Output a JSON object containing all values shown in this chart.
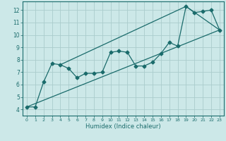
{
  "title": "",
  "xlabel": "Humidex (Indice chaleur)",
  "bg_color": "#cce8e8",
  "grid_color": "#aacccc",
  "line_color": "#1a6b6b",
  "xlim": [
    -0.5,
    23.5
  ],
  "ylim": [
    3.5,
    12.7
  ],
  "xticks": [
    0,
    1,
    2,
    3,
    4,
    5,
    6,
    7,
    8,
    9,
    10,
    11,
    12,
    13,
    14,
    15,
    16,
    17,
    18,
    19,
    20,
    21,
    22,
    23
  ],
  "yticks": [
    4,
    5,
    6,
    7,
    8,
    9,
    10,
    11,
    12
  ],
  "line1_x": [
    0,
    1,
    2,
    3,
    4,
    5,
    6,
    7,
    8,
    9,
    10,
    11,
    12,
    13,
    14,
    15,
    16,
    17,
    18,
    19,
    20,
    21,
    22,
    23
  ],
  "line1_y": [
    4.2,
    4.2,
    6.2,
    7.7,
    7.6,
    7.3,
    6.55,
    6.9,
    6.9,
    7.0,
    8.6,
    8.7,
    8.6,
    7.5,
    7.5,
    7.8,
    8.5,
    9.4,
    9.1,
    12.3,
    11.8,
    11.9,
    12.0,
    10.4
  ],
  "line2_x": [
    0,
    23
  ],
  "line2_y": [
    4.2,
    10.4
  ],
  "line3_x": [
    4,
    19,
    23
  ],
  "line3_y": [
    7.6,
    12.3,
    10.4
  ]
}
